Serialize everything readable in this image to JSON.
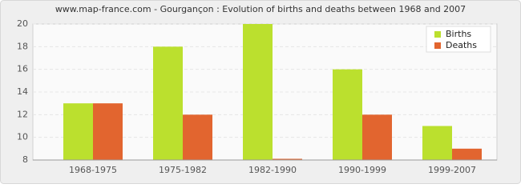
{
  "chart_data": {
    "type": "bar",
    "title": "www.map-france.com - Gourgançon : Evolution of births and deaths between 1968 and 2007",
    "categories": [
      "1968-1975",
      "1975-1982",
      "1982-1990",
      "1990-1999",
      "1999-2007"
    ],
    "series": [
      {
        "name": "Births",
        "color": "#bbe02e",
        "values": [
          13,
          18,
          20,
          16,
          11
        ]
      },
      {
        "name": "Deaths",
        "color": "#e2652f",
        "values": [
          13,
          12,
          8,
          12,
          9
        ]
      }
    ],
    "ylim": [
      8,
      20
    ],
    "yticks": [
      8,
      10,
      12,
      14,
      16,
      18,
      20
    ],
    "grid": true,
    "legend": "top-right"
  }
}
